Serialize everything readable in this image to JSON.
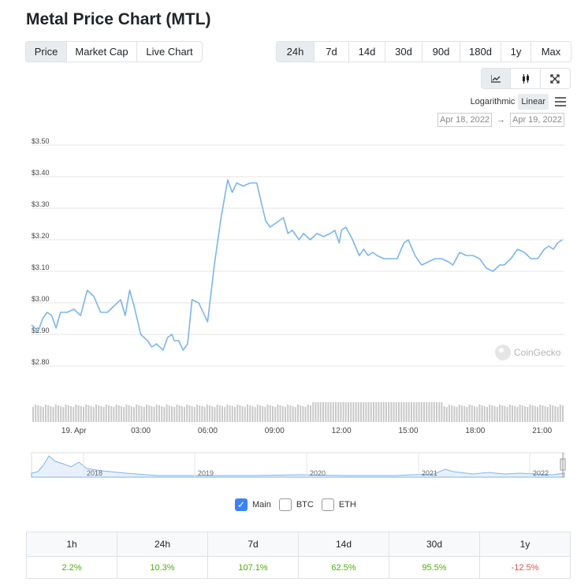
{
  "title": "Metal Price Chart (MTL)",
  "type_tabs": [
    {
      "label": "Price",
      "active": true
    },
    {
      "label": "Market Cap",
      "active": false
    },
    {
      "label": "Live Chart",
      "active": false
    }
  ],
  "range_tabs": [
    {
      "label": "24h",
      "active": true
    },
    {
      "label": "7d",
      "active": false
    },
    {
      "label": "14d",
      "active": false
    },
    {
      "label": "30d",
      "active": false
    },
    {
      "label": "90d",
      "active": false
    },
    {
      "label": "180d",
      "active": false
    },
    {
      "label": "1y",
      "active": false
    },
    {
      "label": "Max",
      "active": false
    }
  ],
  "tools": {
    "line_icon": "line-chart-icon",
    "candle_icon": "candlestick-icon",
    "expand_icon": "expand-icon"
  },
  "scale": {
    "log_label": "Logarithmic",
    "linear_label": "Linear",
    "active": "linear"
  },
  "dates": {
    "from": "Apr 18, 2022",
    "arrow": "→",
    "to": "Apr 19, 2022"
  },
  "watermark": "CoinGecko",
  "colors": {
    "line": "#7cb5ec",
    "accent": "#3b82f6",
    "positive": "#4eaf0a",
    "negative": "#e15241"
  },
  "chart_data": {
    "type": "line",
    "ylim": [
      2.8,
      3.5
    ],
    "y_ticks": [
      "$3.50",
      "$3.40",
      "$3.30",
      "$3.20",
      "$3.10",
      "$3.00",
      "$2.90",
      "$2.80"
    ],
    "x_ticks": [
      "19. Apr",
      "03:00",
      "06:00",
      "09:00",
      "12:00",
      "15:00",
      "18:00",
      "21:00"
    ],
    "x_tick_hours": [
      0,
      3,
      6,
      9,
      12,
      15,
      18,
      21
    ],
    "x_range_hours": [
      -1.9,
      22.0
    ],
    "series": [
      {
        "x": [
          -1.9,
          -1.6,
          -1.4,
          -1.2,
          -1.0,
          -0.8,
          -0.6,
          -0.3,
          0,
          0.3,
          0.6,
          0.9,
          1.2,
          1.5,
          1.8,
          2.1,
          2.3,
          2.5,
          2.7,
          3.0,
          3.3,
          3.5,
          3.7,
          4.0,
          4.2,
          4.4,
          4.5,
          4.6,
          4.7,
          4.9,
          5.1,
          5.3,
          5.6,
          6.0,
          6.3,
          6.6,
          6.9,
          7.1,
          7.3,
          7.6,
          7.9,
          8.2,
          8.4,
          8.6,
          8.8,
          9.0,
          9.2,
          9.4,
          9.6,
          9.8,
          10.1,
          10.3,
          10.6,
          10.9,
          11.2,
          11.5,
          11.7,
          11.9,
          12.0,
          12.2,
          12.5,
          12.8,
          13.0,
          13.2,
          13.4,
          13.6,
          13.9,
          14.2,
          14.5,
          14.8,
          15.0,
          15.3,
          15.6,
          15.9,
          16.2,
          16.5,
          16.8,
          17.0,
          17.3,
          17.6,
          17.9,
          18.2,
          18.5,
          18.8,
          19.1,
          19.3,
          19.6,
          19.9,
          20.2,
          20.5,
          20.8,
          21.1,
          21.3,
          21.5,
          21.7,
          21.9
        ],
        "values": [
          2.93,
          2.91,
          2.95,
          2.97,
          2.96,
          2.92,
          2.97,
          2.97,
          2.98,
          2.96,
          3.04,
          3.02,
          2.97,
          2.97,
          2.99,
          3.01,
          2.96,
          3.04,
          2.99,
          2.9,
          2.88,
          2.86,
          2.87,
          2.85,
          2.89,
          2.9,
          2.88,
          2.88,
          2.88,
          2.85,
          2.87,
          3.01,
          3.0,
          2.94,
          3.12,
          3.27,
          3.39,
          3.35,
          3.38,
          3.37,
          3.38,
          3.38,
          3.32,
          3.26,
          3.24,
          3.25,
          3.26,
          3.27,
          3.22,
          3.23,
          3.2,
          3.22,
          3.2,
          3.22,
          3.21,
          3.22,
          3.23,
          3.19,
          3.23,
          3.24,
          3.2,
          3.15,
          3.17,
          3.15,
          3.16,
          3.15,
          3.14,
          3.14,
          3.14,
          3.19,
          3.2,
          3.15,
          3.12,
          3.13,
          3.14,
          3.14,
          3.13,
          3.12,
          3.16,
          3.15,
          3.15,
          3.14,
          3.11,
          3.1,
          3.12,
          3.12,
          3.14,
          3.17,
          3.16,
          3.14,
          3.14,
          3.17,
          3.18,
          3.17,
          3.19,
          3.2
        ]
      }
    ],
    "navigator_labels": [
      "2018",
      "2019",
      "2020",
      "2021",
      "2022"
    ]
  },
  "legend": [
    {
      "label": "Main",
      "checked": true
    },
    {
      "label": "BTC",
      "checked": false
    },
    {
      "label": "ETH",
      "checked": false
    }
  ],
  "stats": {
    "headers": [
      "1h",
      "24h",
      "7d",
      "14d",
      "30d",
      "1y"
    ],
    "values": [
      {
        "text": "2.2%",
        "sign": "pos"
      },
      {
        "text": "10.3%",
        "sign": "pos"
      },
      {
        "text": "107.1%",
        "sign": "pos"
      },
      {
        "text": "62.5%",
        "sign": "pos"
      },
      {
        "text": "95.5%",
        "sign": "pos"
      },
      {
        "text": "-12.5%",
        "sign": "neg"
      }
    ]
  }
}
